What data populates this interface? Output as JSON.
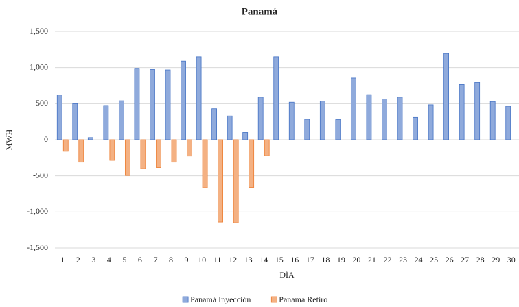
{
  "chart_data": {
    "type": "bar",
    "title": "Panamá",
    "x_label": "DÍA",
    "y_label": "MWH",
    "categories": [
      "1",
      "2",
      "3",
      "4",
      "5",
      "6",
      "7",
      "8",
      "9",
      "10",
      "11",
      "12",
      "13",
      "14",
      "15",
      "16",
      "17",
      "18",
      "19",
      "20",
      "21",
      "22",
      "23",
      "24",
      "25",
      "26",
      "27",
      "28",
      "29",
      "30"
    ],
    "series": [
      {
        "name": "Panamá Inyección",
        "color": "#8faadc",
        "edge": "#4472c4",
        "values": [
          620,
          500,
          30,
          475,
          540,
          990,
          975,
          968,
          1090,
          1150,
          430,
          330,
          100,
          590,
          1150,
          520,
          285,
          535,
          280,
          855,
          625,
          565,
          590,
          310,
          485,
          1195,
          765,
          795,
          530,
          465
        ]
      },
      {
        "name": "Panamá Retiro",
        "color": "#f4b183",
        "edge": "#ed7d31",
        "values": [
          -160,
          -310,
          null,
          -285,
          -495,
          -400,
          -385,
          -310,
          -225,
          -665,
          -1140,
          -1150,
          -660,
          -220,
          null,
          null,
          null,
          null,
          null,
          null,
          null,
          null,
          null,
          null,
          null,
          null,
          null,
          null,
          null,
          null
        ]
      }
    ],
    "ylim": [
      -1500,
      1500
    ],
    "yticks": [
      {
        "value": -1500,
        "label": "-1,500"
      },
      {
        "value": -1000,
        "label": "-1,000"
      },
      -500,
      0,
      500,
      {
        "value": 1000,
        "label": "1,000"
      },
      {
        "value": 1500,
        "label": "1,500"
      }
    ],
    "grid": true,
    "legend": "bottom"
  }
}
